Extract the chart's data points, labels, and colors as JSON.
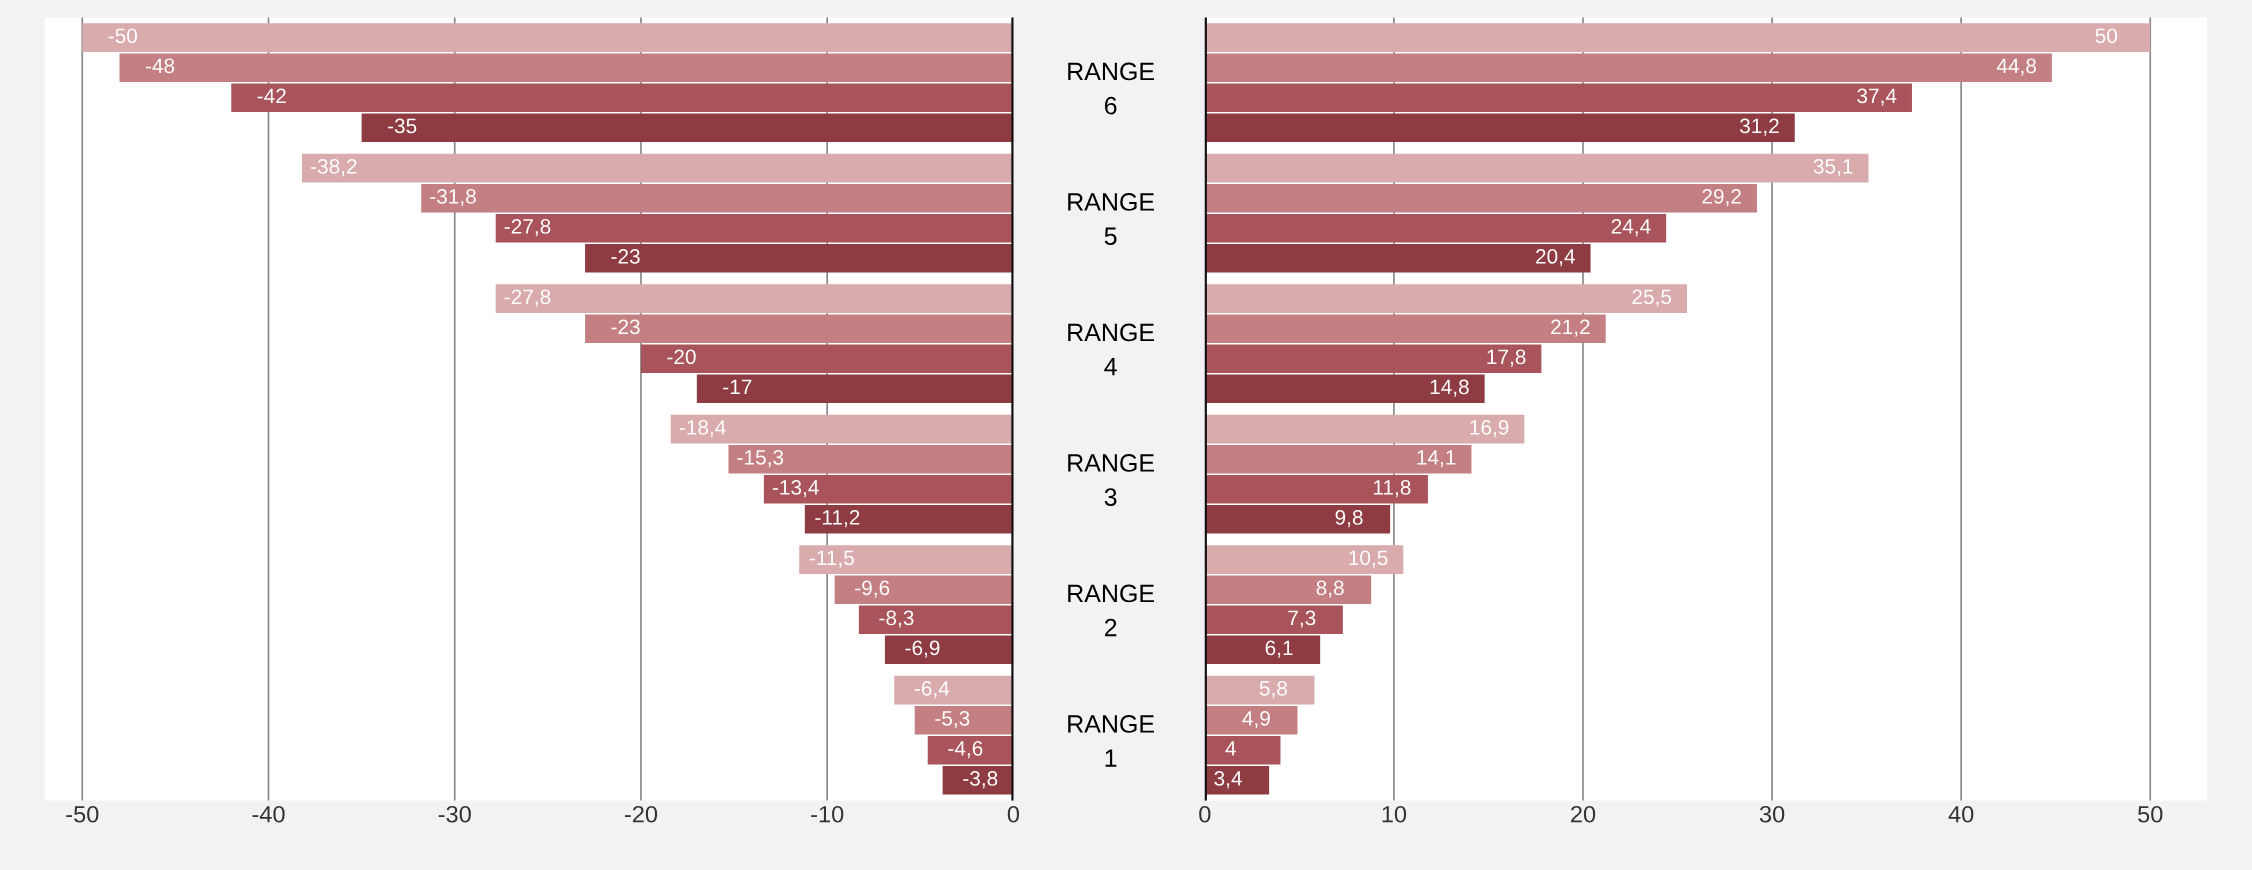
{
  "chart_data": [
    {
      "type": "bar",
      "orientation": "horizontal",
      "categories": [
        "RANGE\n6",
        "RANGE\n5",
        "RANGE\n4",
        "RANGE\n3",
        "RANGE\n2",
        "RANGE\n1"
      ],
      "xlim": [
        -52,
        0
      ],
      "xticks": [
        -50,
        -40,
        -30,
        -20,
        -10,
        0
      ],
      "grid": "x",
      "legend": false,
      "series": [
        {
          "color": "#d9abad",
          "values": [
            -50,
            -38.2,
            -27.8,
            -18.4,
            -11.5,
            -6.4
          ],
          "value_labels": [
            "-50",
            "-38,2",
            "-27,8",
            "-18,4",
            "-11,5",
            "-6,4"
          ]
        },
        {
          "color": "#c47f83",
          "values": [
            -48,
            -31.8,
            -23,
            -15.3,
            -9.6,
            -5.3
          ],
          "value_labels": [
            "-48",
            "-31,8",
            "-23",
            "-15,3",
            "-9,6",
            "-5,3"
          ]
        },
        {
          "color": "#a9545a",
          "values": [
            -42,
            -27.8,
            -20,
            -13.4,
            -8.3,
            -4.6
          ],
          "value_labels": [
            "-42",
            "-27,8",
            "-20",
            "-13,4",
            "-8,3",
            "-4,6"
          ]
        },
        {
          "color": "#8e3c42",
          "values": [
            -35,
            -23,
            -17,
            -11.2,
            -6.9,
            -3.8
          ],
          "value_labels": [
            "-35",
            "-23",
            "-17",
            "-11,2",
            "-6,9",
            "-3,8"
          ]
        }
      ]
    },
    {
      "type": "bar",
      "orientation": "horizontal",
      "categories": [
        null,
        null,
        null,
        null,
        null,
        null
      ],
      "xlim": [
        0,
        53
      ],
      "xticks": [
        0,
        10,
        20,
        30,
        40,
        50
      ],
      "grid": "x",
      "legend": false,
      "tick_labels": "x",
      "series": [
        {
          "color": "#d9abad",
          "values": [
            50,
            35.1,
            25.5,
            16.9,
            10.5,
            5.8
          ],
          "value_labels": [
            "50",
            "35,1",
            "25,5",
            "16,9",
            "10,5",
            "5,8"
          ]
        },
        {
          "color": "#c47f83",
          "values": [
            44.8,
            29.2,
            21.2,
            14.1,
            8.8,
            4.9
          ],
          "value_labels": [
            "44,8",
            "29,2",
            "21,2",
            "14,1",
            "8,8",
            "4,9"
          ]
        },
        {
          "color": "#a9545a",
          "values": [
            37.4,
            24.4,
            17.8,
            11.8,
            7.3,
            4
          ],
          "value_labels": [
            "37,4",
            "24,4",
            "17,8",
            "11,8",
            "7,3",
            "4"
          ]
        },
        {
          "color": "#8e3c42",
          "values": [
            31.2,
            20.4,
            14.8,
            9.8,
            6.1,
            3.4
          ],
          "value_labels": [
            "31,2",
            "20,4",
            "14,8",
            "9,8",
            "6,1",
            "3,4"
          ]
        }
      ]
    }
  ]
}
